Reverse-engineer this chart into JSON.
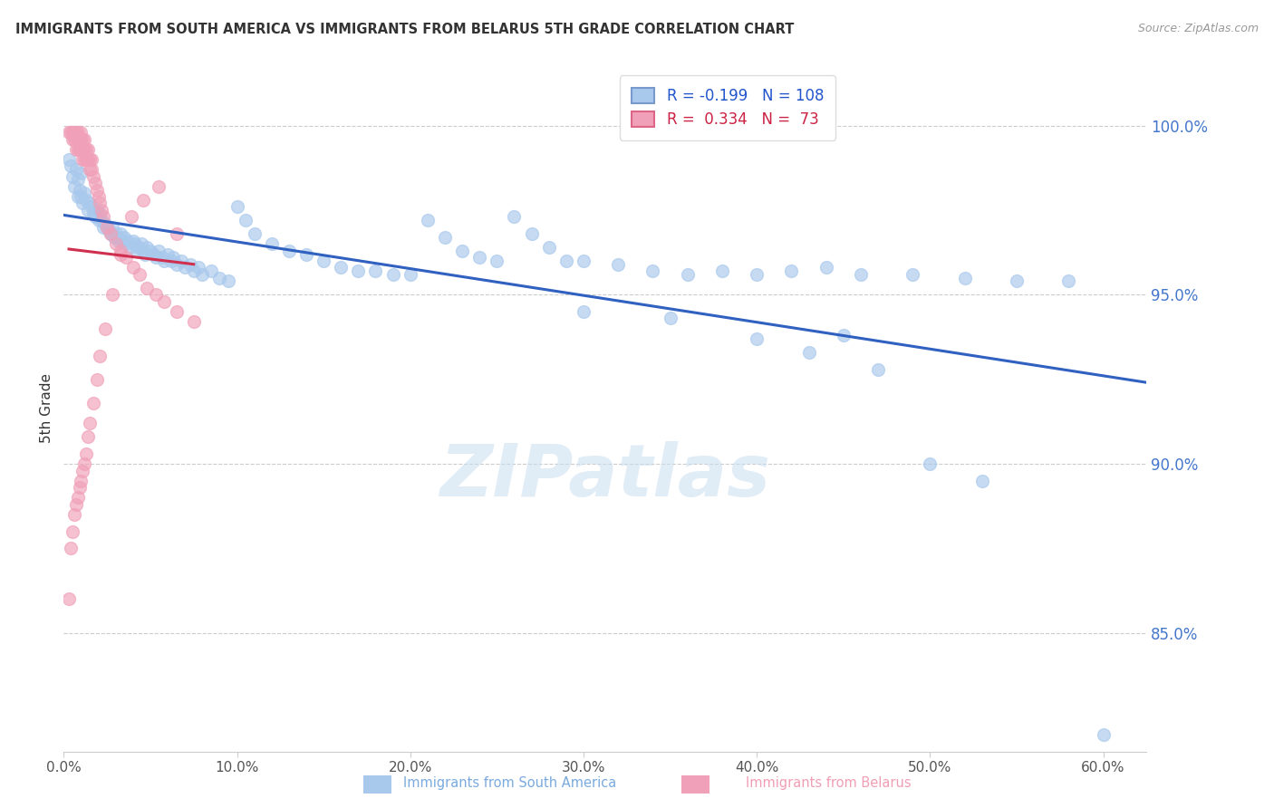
{
  "title": "IMMIGRANTS FROM SOUTH AMERICA VS IMMIGRANTS FROM BELARUS 5TH GRADE CORRELATION CHART",
  "source": "Source: ZipAtlas.com",
  "xlabel_ticks": [
    "0.0%",
    "10.0%",
    "20.0%",
    "30.0%",
    "40.0%",
    "50.0%",
    "60.0%"
  ],
  "xlabel_vals": [
    0.0,
    0.1,
    0.2,
    0.3,
    0.4,
    0.5,
    0.6
  ],
  "ylabel_ticks": [
    "85.0%",
    "90.0%",
    "95.0%",
    "100.0%"
  ],
  "ylabel_vals": [
    0.85,
    0.9,
    0.95,
    1.0
  ],
  "xlim": [
    0.0,
    0.625
  ],
  "ylim": [
    0.815,
    1.018
  ],
  "ylabel_label": "5th Grade",
  "blue_color": "#A8C8EC",
  "pink_color": "#F0A0B8",
  "blue_line_color": "#3060C0",
  "pink_line_color": "#D03050",
  "legend_blue_r": "-0.199",
  "legend_blue_n": "108",
  "legend_pink_r": "0.334",
  "legend_pink_n": "73",
  "blue_scatter_x": [
    0.003,
    0.004,
    0.005,
    0.006,
    0.007,
    0.008,
    0.008,
    0.009,
    0.01,
    0.01,
    0.011,
    0.012,
    0.013,
    0.014,
    0.015,
    0.016,
    0.017,
    0.018,
    0.019,
    0.02,
    0.021,
    0.022,
    0.023,
    0.024,
    0.025,
    0.026,
    0.027,
    0.028,
    0.029,
    0.03,
    0.031,
    0.032,
    0.033,
    0.034,
    0.035,
    0.036,
    0.037,
    0.038,
    0.04,
    0.041,
    0.042,
    0.043,
    0.045,
    0.046,
    0.047,
    0.048,
    0.05,
    0.052,
    0.053,
    0.055,
    0.057,
    0.058,
    0.06,
    0.062,
    0.063,
    0.065,
    0.068,
    0.07,
    0.073,
    0.075,
    0.078,
    0.08,
    0.085,
    0.09,
    0.095,
    0.1,
    0.105,
    0.11,
    0.12,
    0.13,
    0.14,
    0.15,
    0.16,
    0.17,
    0.18,
    0.19,
    0.2,
    0.21,
    0.22,
    0.23,
    0.24,
    0.25,
    0.26,
    0.27,
    0.28,
    0.29,
    0.3,
    0.32,
    0.34,
    0.36,
    0.38,
    0.4,
    0.42,
    0.44,
    0.46,
    0.49,
    0.52,
    0.55,
    0.58,
    0.6,
    0.3,
    0.35,
    0.4,
    0.43,
    0.45,
    0.47,
    0.5,
    0.53
  ],
  "blue_scatter_y": [
    0.99,
    0.988,
    0.985,
    0.982,
    0.987,
    0.984,
    0.979,
    0.981,
    0.986,
    0.979,
    0.977,
    0.98,
    0.978,
    0.975,
    0.977,
    0.976,
    0.974,
    0.973,
    0.975,
    0.972,
    0.974,
    0.972,
    0.97,
    0.971,
    0.97,
    0.969,
    0.968,
    0.97,
    0.967,
    0.968,
    0.967,
    0.966,
    0.968,
    0.966,
    0.967,
    0.965,
    0.966,
    0.964,
    0.966,
    0.965,
    0.963,
    0.964,
    0.965,
    0.963,
    0.962,
    0.964,
    0.963,
    0.962,
    0.961,
    0.963,
    0.961,
    0.96,
    0.962,
    0.96,
    0.961,
    0.959,
    0.96,
    0.958,
    0.959,
    0.957,
    0.958,
    0.956,
    0.957,
    0.955,
    0.954,
    0.976,
    0.972,
    0.968,
    0.965,
    0.963,
    0.962,
    0.96,
    0.958,
    0.957,
    0.957,
    0.956,
    0.956,
    0.972,
    0.967,
    0.963,
    0.961,
    0.96,
    0.973,
    0.968,
    0.964,
    0.96,
    0.96,
    0.959,
    0.957,
    0.956,
    0.957,
    0.956,
    0.957,
    0.958,
    0.956,
    0.956,
    0.955,
    0.954,
    0.954,
    0.82,
    0.945,
    0.943,
    0.937,
    0.933,
    0.938,
    0.928,
    0.9,
    0.895
  ],
  "pink_scatter_x": [
    0.003,
    0.004,
    0.005,
    0.005,
    0.006,
    0.006,
    0.007,
    0.007,
    0.007,
    0.008,
    0.008,
    0.008,
    0.009,
    0.009,
    0.01,
    0.01,
    0.01,
    0.011,
    0.011,
    0.011,
    0.012,
    0.012,
    0.012,
    0.013,
    0.013,
    0.014,
    0.014,
    0.015,
    0.015,
    0.016,
    0.016,
    0.017,
    0.018,
    0.019,
    0.02,
    0.021,
    0.022,
    0.023,
    0.025,
    0.027,
    0.03,
    0.033,
    0.036,
    0.04,
    0.044,
    0.048,
    0.053,
    0.058,
    0.065,
    0.075,
    0.003,
    0.004,
    0.005,
    0.006,
    0.007,
    0.008,
    0.009,
    0.01,
    0.011,
    0.012,
    0.013,
    0.014,
    0.015,
    0.017,
    0.019,
    0.021,
    0.024,
    0.028,
    0.033,
    0.039,
    0.046,
    0.055,
    0.065
  ],
  "pink_scatter_y": [
    0.998,
    0.998,
    0.998,
    0.996,
    0.998,
    0.996,
    0.998,
    0.996,
    0.993,
    0.998,
    0.996,
    0.993,
    0.996,
    0.993,
    0.998,
    0.996,
    0.993,
    0.996,
    0.993,
    0.99,
    0.996,
    0.993,
    0.99,
    0.993,
    0.99,
    0.993,
    0.99,
    0.99,
    0.987,
    0.99,
    0.987,
    0.985,
    0.983,
    0.981,
    0.979,
    0.977,
    0.975,
    0.973,
    0.97,
    0.968,
    0.965,
    0.963,
    0.961,
    0.958,
    0.956,
    0.952,
    0.95,
    0.948,
    0.945,
    0.942,
    0.86,
    0.875,
    0.88,
    0.885,
    0.888,
    0.89,
    0.893,
    0.895,
    0.898,
    0.9,
    0.903,
    0.908,
    0.912,
    0.918,
    0.925,
    0.932,
    0.94,
    0.95,
    0.962,
    0.973,
    0.978,
    0.982,
    0.968
  ]
}
